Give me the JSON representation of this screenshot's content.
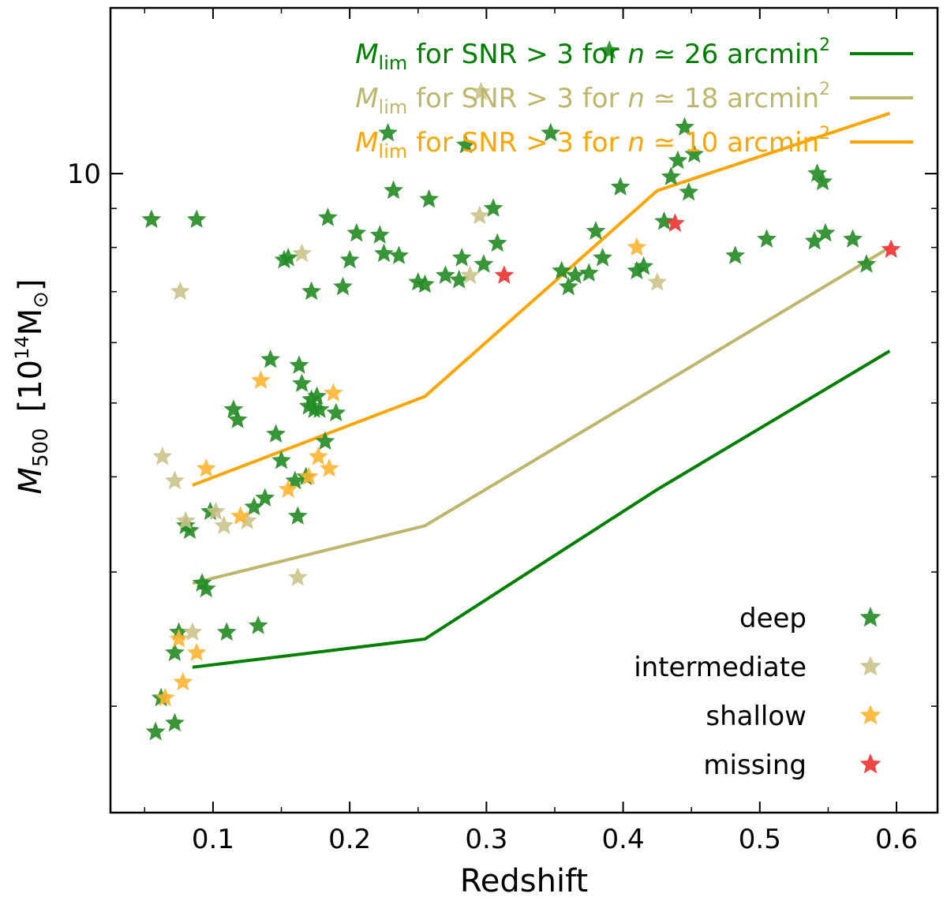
{
  "chart_data": {
    "type": "scatter",
    "xlabel": "Redshift",
    "ylabel": {
      "main": "M",
      "sub": "500",
      "unit_open": "[10",
      "unit_exp": "14",
      "unit_close": "M",
      "unit_sub": "⊙",
      "bracket_close": "]"
    },
    "xlim": [
      0.025,
      0.63
    ],
    "ylim": [
      1.45,
      16.5
    ],
    "yscale": "log",
    "x_ticks": [
      0.1,
      0.2,
      0.3,
      0.4,
      0.5,
      0.6
    ],
    "x_tick_labels": [
      "0.1",
      "0.2",
      "0.3",
      "0.4",
      "0.5",
      "0.6"
    ],
    "y_ticks_labeled": [
      10
    ],
    "y_tick_labels": [
      "10"
    ],
    "y_minor_ticks": [
      2,
      3,
      4,
      5,
      6,
      7,
      8,
      9
    ],
    "lines": [
      {
        "name": "Mlim SNR>3 n~26",
        "color": "#008000",
        "x": [
          0.085,
          0.255,
          0.425,
          0.595
        ],
        "y": [
          2.25,
          2.45,
          3.85,
          5.85
        ]
      },
      {
        "name": "Mlim SNR>3 n~18",
        "color": "#bdb76b",
        "x": [
          0.085,
          0.255,
          0.425,
          0.595
        ],
        "y": [
          2.9,
          3.45,
          5.25,
          8.0
        ]
      },
      {
        "name": "Mlim SNR>3 n~10",
        "color": "#ffa500",
        "x": [
          0.085,
          0.255,
          0.425,
          0.595
        ],
        "y": [
          3.9,
          5.1,
          9.5,
          12.0
        ]
      }
    ],
    "line_legend": [
      {
        "m": "M",
        "sub": "lim",
        "text1": " for SNR > 3 for ",
        "n": "n",
        "text2": " ≃ 26 arcmin",
        "exp": "2",
        "color": "#008000"
      },
      {
        "m": "M",
        "sub": "lim",
        "text1": " for SNR > 3 for ",
        "n": "n",
        "text2": " ≃ 18 arcmin",
        "exp": "2",
        "color": "#bdb76b"
      },
      {
        "m": "M",
        "sub": "lim",
        "text1": " for SNR > 3 for ",
        "n": "n",
        "text2": " ≃ 10 arcmin",
        "exp": "2",
        "color": "#ffa500"
      }
    ],
    "marker_legend": [
      {
        "label": "deep",
        "color": "#228b22"
      },
      {
        "label": "intermediate",
        "color": "#c9c38a"
      },
      {
        "label": "shallow",
        "color": "#ffb531"
      },
      {
        "label": "missing",
        "color": "#f03030"
      }
    ],
    "series": [
      {
        "name": "deep",
        "color": "#228b22",
        "points": [
          [
            0.055,
            8.7
          ],
          [
            0.088,
            8.7
          ],
          [
            0.058,
            1.85
          ],
          [
            0.062,
            2.05
          ],
          [
            0.072,
            1.9
          ],
          [
            0.072,
            2.35
          ],
          [
            0.075,
            2.5
          ],
          [
            0.08,
            3.45
          ],
          [
            0.083,
            3.4
          ],
          [
            0.092,
            2.9
          ],
          [
            0.095,
            2.85
          ],
          [
            0.098,
            3.6
          ],
          [
            0.11,
            2.5
          ],
          [
            0.115,
            4.9
          ],
          [
            0.118,
            4.75
          ],
          [
            0.13,
            3.65
          ],
          [
            0.133,
            2.55
          ],
          [
            0.138,
            3.75
          ],
          [
            0.142,
            5.7
          ],
          [
            0.146,
            4.55
          ],
          [
            0.15,
            4.2
          ],
          [
            0.152,
            7.7
          ],
          [
            0.155,
            7.75
          ],
          [
            0.16,
            3.95
          ],
          [
            0.162,
            3.55
          ],
          [
            0.163,
            5.6
          ],
          [
            0.165,
            5.3
          ],
          [
            0.168,
            4.0
          ],
          [
            0.17,
            4.95
          ],
          [
            0.172,
            5.05
          ],
          [
            0.174,
            4.9
          ],
          [
            0.176,
            5.1
          ],
          [
            0.178,
            4.9
          ],
          [
            0.172,
            7.0
          ],
          [
            0.182,
            4.45
          ],
          [
            0.184,
            8.75
          ],
          [
            0.19,
            4.85
          ],
          [
            0.195,
            7.1
          ],
          [
            0.2,
            7.7
          ],
          [
            0.205,
            8.35
          ],
          [
            0.222,
            8.3
          ],
          [
            0.225,
            7.85
          ],
          [
            0.228,
            11.3
          ],
          [
            0.232,
            9.5
          ],
          [
            0.236,
            7.8
          ],
          [
            0.25,
            7.2
          ],
          [
            0.255,
            7.15
          ],
          [
            0.258,
            9.25
          ],
          [
            0.27,
            7.35
          ],
          [
            0.28,
            7.25
          ],
          [
            0.282,
            7.75
          ],
          [
            0.285,
            10.9
          ],
          [
            0.298,
            7.6
          ],
          [
            0.305,
            9.0
          ],
          [
            0.308,
            8.1
          ],
          [
            0.347,
            11.3
          ],
          [
            0.355,
            7.45
          ],
          [
            0.36,
            7.1
          ],
          [
            0.365,
            7.35
          ],
          [
            0.375,
            7.4
          ],
          [
            0.38,
            8.4
          ],
          [
            0.385,
            7.75
          ],
          [
            0.39,
            14.5
          ],
          [
            0.398,
            9.6
          ],
          [
            0.41,
            7.45
          ],
          [
            0.415,
            7.55
          ],
          [
            0.43,
            8.65
          ],
          [
            0.435,
            9.9
          ],
          [
            0.44,
            10.4
          ],
          [
            0.445,
            11.5
          ],
          [
            0.448,
            9.45
          ],
          [
            0.452,
            10.6
          ],
          [
            0.482,
            7.8
          ],
          [
            0.505,
            8.2
          ],
          [
            0.54,
            8.15
          ],
          [
            0.542,
            10.0
          ],
          [
            0.546,
            9.75
          ],
          [
            0.548,
            8.35
          ],
          [
            0.568,
            8.2
          ],
          [
            0.578,
            7.6
          ]
        ]
      },
      {
        "name": "intermediate",
        "color": "#c9c38a",
        "points": [
          [
            0.076,
            7.0
          ],
          [
            0.063,
            4.25
          ],
          [
            0.072,
            3.95
          ],
          [
            0.08,
            3.5
          ],
          [
            0.085,
            2.5
          ],
          [
            0.102,
            3.6
          ],
          [
            0.108,
            3.45
          ],
          [
            0.125,
            3.5
          ],
          [
            0.162,
            2.95
          ],
          [
            0.165,
            7.85
          ],
          [
            0.296,
            12.8
          ],
          [
            0.295,
            8.8
          ],
          [
            0.288,
            7.35
          ],
          [
            0.425,
            7.2
          ]
        ]
      },
      {
        "name": "shallow",
        "color": "#ffb531",
        "points": [
          [
            0.065,
            2.05
          ],
          [
            0.078,
            2.15
          ],
          [
            0.075,
            2.45
          ],
          [
            0.088,
            2.35
          ],
          [
            0.095,
            4.1
          ],
          [
            0.12,
            3.55
          ],
          [
            0.135,
            5.35
          ],
          [
            0.155,
            3.85
          ],
          [
            0.17,
            4.0
          ],
          [
            0.177,
            4.25
          ],
          [
            0.185,
            4.1
          ],
          [
            0.188,
            5.15
          ],
          [
            0.41,
            8.0
          ]
        ]
      },
      {
        "name": "missing",
        "color": "#f03030",
        "points": [
          [
            0.313,
            7.35
          ],
          [
            0.438,
            8.6
          ],
          [
            0.596,
            7.95
          ]
        ]
      }
    ]
  }
}
